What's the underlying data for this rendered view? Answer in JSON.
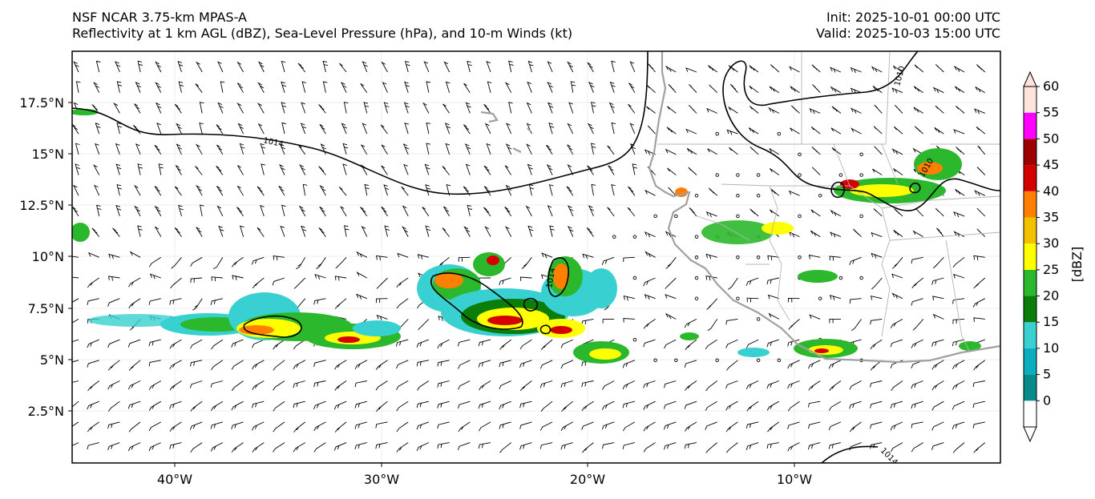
{
  "header": {
    "title_line1": "NSF NCAR 3.75-km MPAS-A",
    "title_line2": "Reflectivity at 1 km AGL (dBZ), Sea-Level Pressure (hPa), and 10-m Winds (kt)",
    "init": "Init: 2025-10-01 00:00 UTC",
    "valid": "Valid: 2025-10-03 15:00 UTC"
  },
  "axes": {
    "lon_ticks": [
      "40°W",
      "30°W",
      "20°W",
      "10°W"
    ],
    "lat_ticks": [
      "17.5°N",
      "15°N",
      "12.5°N",
      "10°N",
      "7.5°N",
      "5°N",
      "2.5°N"
    ]
  },
  "contours": {
    "labels": [
      "1014",
      "1010",
      "1010",
      "1014",
      "1014"
    ]
  },
  "colorbar": {
    "unit_label": "[dBZ]",
    "ticks": [
      "0",
      "5",
      "10",
      "15",
      "20",
      "25",
      "30",
      "35",
      "40",
      "45",
      "50",
      "55",
      "60"
    ],
    "colors": [
      "#ffffff",
      "#078a8a",
      "#0aaebe",
      "#38d0d0",
      "#0a7d0a",
      "#2cb82c",
      "#ffff00",
      "#f2c200",
      "#ff8000",
      "#d40000",
      "#9e0000",
      "#ff00ff",
      "#ffe4dc"
    ]
  },
  "colors": {
    "land_outline": "#a0a0a0",
    "border": "#b4b4b4",
    "isobar": "#000000"
  }
}
